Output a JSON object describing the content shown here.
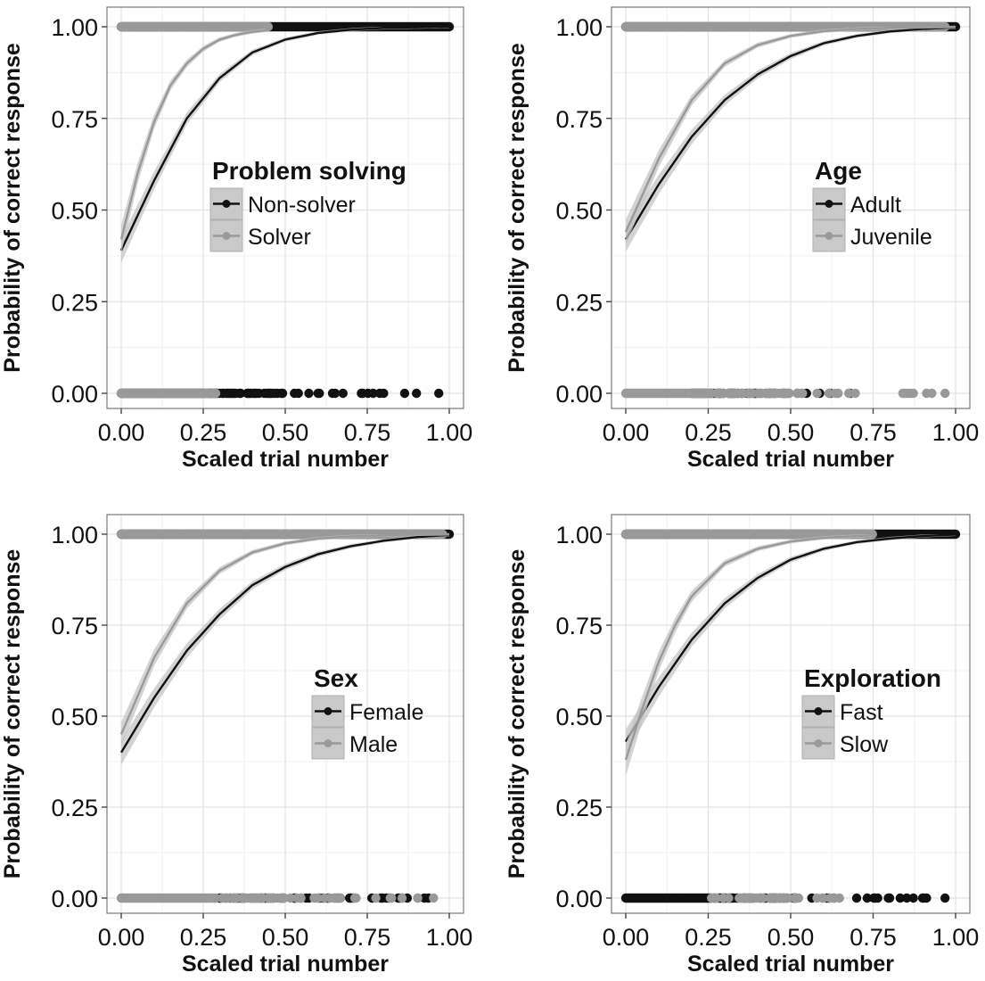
{
  "chart_data": [
    {
      "type": "line",
      "xlabel": "Scaled trial number",
      "ylabel": "Probability of correct response",
      "xlim": [
        0,
        1
      ],
      "ylim": [
        -0.04,
        1.04
      ],
      "x_ticks": [
        "0.00",
        "0.25",
        "0.50",
        "0.75",
        "1.00"
      ],
      "y_ticks": [
        "0.00",
        "0.25",
        "0.50",
        "0.75",
        "1.00"
      ],
      "grid": true,
      "legend": {
        "title": "Problem solving",
        "placement": "center-right",
        "entries": [
          {
            "label": "Non-solver",
            "color": "#111111"
          },
          {
            "label": "Solver",
            "color": "#999999"
          }
        ]
      },
      "series": [
        {
          "name": "Non-solver",
          "color": "#111111",
          "x": [
            0,
            0.1,
            0.2,
            0.3,
            0.4,
            0.5,
            0.6,
            0.7,
            0.8,
            1.0
          ],
          "y": [
            0.39,
            0.58,
            0.75,
            0.86,
            0.93,
            0.965,
            0.983,
            0.992,
            0.997,
            1.0
          ],
          "ci_halfwidth": 0.03,
          "correct_x_range": [
            0,
            1.0
          ],
          "incorrect_x_range": [
            0,
            0.97
          ]
        },
        {
          "name": "Solver",
          "color": "#999999",
          "x": [
            0,
            0.05,
            0.1,
            0.15,
            0.2,
            0.25,
            0.3,
            0.35,
            0.4,
            0.44
          ],
          "y": [
            0.42,
            0.6,
            0.74,
            0.84,
            0.9,
            0.94,
            0.965,
            0.978,
            0.986,
            0.99
          ],
          "ci_halfwidth": 0.035,
          "correct_x_range": [
            0,
            0.45
          ],
          "incorrect_x_range": [
            0,
            0.3
          ]
        }
      ]
    },
    {
      "type": "line",
      "xlabel": "Scaled trial number",
      "ylabel": "Probability of correct response",
      "xlim": [
        0,
        1
      ],
      "ylim": [
        -0.04,
        1.04
      ],
      "x_ticks": [
        "0.00",
        "0.25",
        "0.50",
        "0.75",
        "1.00"
      ],
      "y_ticks": [
        "0.00",
        "0.25",
        "0.50",
        "0.75",
        "1.00"
      ],
      "grid": true,
      "legend": {
        "title": "Age",
        "placement": "center-right",
        "entries": [
          {
            "label": "Adult",
            "color": "#111111"
          },
          {
            "label": "Juvenile",
            "color": "#999999"
          }
        ]
      },
      "series": [
        {
          "name": "Adult",
          "color": "#111111",
          "x": [
            0,
            0.1,
            0.2,
            0.3,
            0.4,
            0.5,
            0.6,
            0.7,
            0.8,
            0.9,
            1.0
          ],
          "y": [
            0.42,
            0.57,
            0.7,
            0.8,
            0.87,
            0.92,
            0.955,
            0.975,
            0.987,
            0.994,
            0.998
          ],
          "ci_halfwidth": 0.03,
          "correct_x_range": [
            0,
            1.0
          ],
          "incorrect_x_range": [
            0.2,
            0.75
          ]
        },
        {
          "name": "Juvenile",
          "color": "#999999",
          "x": [
            0,
            0.1,
            0.2,
            0.3,
            0.4,
            0.5,
            0.6,
            0.7,
            0.8,
            0.9,
            1.0
          ],
          "y": [
            0.44,
            0.64,
            0.8,
            0.9,
            0.95,
            0.975,
            0.988,
            0.994,
            0.997,
            0.999,
            1.0
          ],
          "ci_halfwidth": 0.03,
          "correct_x_range": [
            0,
            0.97
          ],
          "incorrect_x_range": [
            0,
            0.97
          ]
        }
      ]
    },
    {
      "type": "line",
      "xlabel": "Scaled trial number",
      "ylabel": "Probability of correct response",
      "xlim": [
        0,
        1
      ],
      "ylim": [
        -0.04,
        1.04
      ],
      "x_ticks": [
        "0.00",
        "0.25",
        "0.50",
        "0.75",
        "1.00"
      ],
      "y_ticks": [
        "0.00",
        "0.25",
        "0.50",
        "0.75",
        "1.00"
      ],
      "grid": true,
      "legend": {
        "title": "Sex",
        "placement": "center-right",
        "entries": [
          {
            "label": "Female",
            "color": "#111111"
          },
          {
            "label": "Male",
            "color": "#999999"
          }
        ]
      },
      "series": [
        {
          "name": "Female",
          "color": "#111111",
          "x": [
            0,
            0.1,
            0.2,
            0.3,
            0.4,
            0.5,
            0.6,
            0.7,
            0.8,
            0.9,
            1.0
          ],
          "y": [
            0.4,
            0.55,
            0.68,
            0.78,
            0.86,
            0.91,
            0.945,
            0.967,
            0.982,
            0.992,
            0.998
          ],
          "ci_halfwidth": 0.03,
          "correct_x_range": [
            0,
            1.0
          ],
          "incorrect_x_range": [
            0.3,
            0.97
          ]
        },
        {
          "name": "Male",
          "color": "#999999",
          "x": [
            0,
            0.1,
            0.2,
            0.3,
            0.4,
            0.5,
            0.6,
            0.7,
            0.8,
            0.9,
            1.0
          ],
          "y": [
            0.45,
            0.66,
            0.81,
            0.9,
            0.95,
            0.975,
            0.988,
            0.994,
            0.997,
            0.999,
            1.0
          ],
          "ci_halfwidth": 0.03,
          "correct_x_range": [
            0,
            0.98
          ],
          "incorrect_x_range": [
            0,
            0.97
          ]
        }
      ]
    },
    {
      "type": "line",
      "xlabel": "Scaled trial number",
      "ylabel": "Probability of correct response",
      "xlim": [
        0,
        1
      ],
      "ylim": [
        -0.04,
        1.04
      ],
      "x_ticks": [
        "0.00",
        "0.25",
        "0.50",
        "0.75",
        "1.00"
      ],
      "y_ticks": [
        "0.00",
        "0.25",
        "0.50",
        "0.75",
        "1.00"
      ],
      "grid": true,
      "legend": {
        "title": "Exploration",
        "placement": "center-right",
        "entries": [
          {
            "label": "Fast",
            "color": "#111111"
          },
          {
            "label": "Slow",
            "color": "#999999"
          }
        ]
      },
      "series": [
        {
          "name": "Fast",
          "color": "#111111",
          "x": [
            0,
            0.1,
            0.2,
            0.3,
            0.4,
            0.5,
            0.6,
            0.7,
            0.8,
            0.9,
            1.0
          ],
          "y": [
            0.43,
            0.58,
            0.71,
            0.81,
            0.88,
            0.93,
            0.96,
            0.978,
            0.988,
            0.995,
            0.999
          ],
          "ci_halfwidth": 0.03,
          "correct_x_range": [
            0,
            1.0
          ],
          "incorrect_x_range": [
            0,
            0.97
          ]
        },
        {
          "name": "Slow",
          "color": "#999999",
          "x": [
            0,
            0.05,
            0.1,
            0.15,
            0.2,
            0.3,
            0.4,
            0.5,
            0.6,
            0.7,
            0.75
          ],
          "y": [
            0.38,
            0.52,
            0.65,
            0.75,
            0.83,
            0.92,
            0.96,
            0.98,
            0.99,
            0.995,
            0.997
          ],
          "ci_halfwidth": 0.04,
          "correct_x_range": [
            0,
            0.75
          ],
          "incorrect_x_range": [
            0.25,
            0.67
          ]
        }
      ]
    }
  ]
}
